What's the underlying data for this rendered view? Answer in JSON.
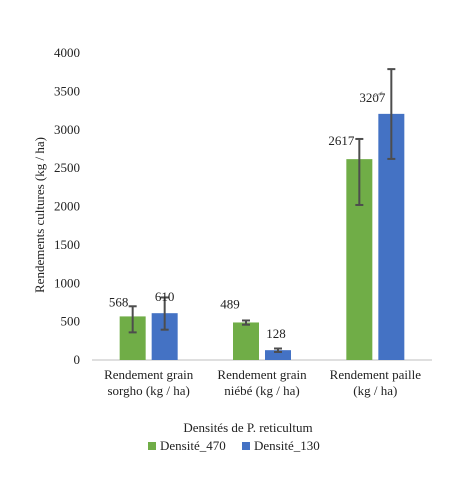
{
  "chart_data": {
    "type": "bar",
    "title": "",
    "xlabel": "Densités de P. reticultum",
    "ylabel": "Rendements cultures  (kg / ha)",
    "ylim": [
      0,
      4000
    ],
    "yticks": [
      0,
      500,
      1000,
      1500,
      2000,
      2500,
      3000,
      3500,
      4000
    ],
    "categories": [
      [
        "Rendement grain",
        "sorgho (kg / ha)"
      ],
      [
        "Rendement grain",
        "niébé (kg / ha)"
      ],
      [
        "Rendement paille",
        "(kg / ha)"
      ]
    ],
    "series": [
      {
        "name": "Densité_470",
        "color": "#70AD47",
        "values": [
          568,
          489,
          2617
        ],
        "labels": [
          "568",
          "489",
          "2617"
        ],
        "error": [
          [
            360,
            700
          ],
          [
            460,
            515
          ],
          [
            2020,
            2880
          ]
        ]
      },
      {
        "name": "Densité_130",
        "color": "#4472C4",
        "values": [
          610,
          128,
          3207
        ],
        "labels": [
          "610",
          "128",
          "3207"
        ],
        "error": [
          [
            395,
            815
          ],
          [
            105,
            150
          ],
          [
            2620,
            3790
          ]
        ]
      }
    ],
    "grid": false,
    "legend": "bottom"
  }
}
